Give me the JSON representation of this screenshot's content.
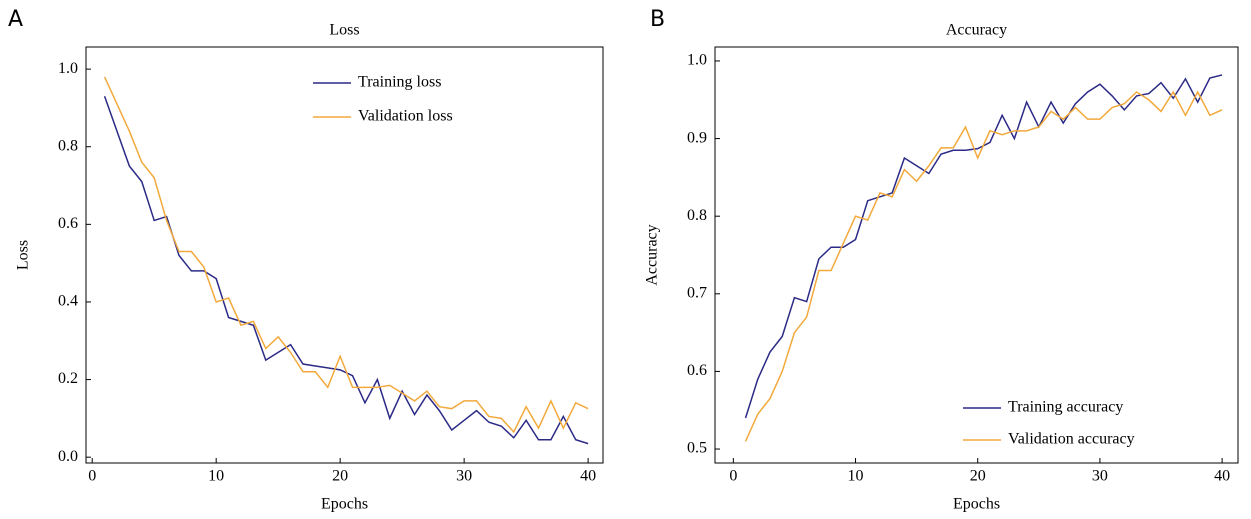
{
  "chart_data": [
    {
      "type": "line",
      "panel_label": "A",
      "title": "Loss",
      "x_label": "Epochs",
      "y_label": "Loss",
      "x": [
        1,
        2,
        3,
        4,
        5,
        6,
        7,
        8,
        9,
        10,
        11,
        12,
        13,
        14,
        15,
        16,
        17,
        18,
        19,
        20,
        21,
        22,
        23,
        24,
        25,
        26,
        27,
        28,
        29,
        30,
        31,
        32,
        33,
        34,
        35,
        36,
        37,
        38,
        39,
        40
      ],
      "series": [
        {
          "name": "Training loss",
          "color": "#2b2a86",
          "values": [
            0.93,
            0.84,
            0.75,
            0.71,
            0.61,
            0.62,
            0.52,
            0.48,
            0.48,
            0.46,
            0.36,
            0.35,
            0.34,
            0.25,
            0.27,
            0.29,
            0.24,
            0.235,
            0.23,
            0.225,
            0.21,
            0.14,
            0.2,
            0.1,
            0.17,
            0.11,
            0.16,
            0.12,
            0.07,
            0.095,
            0.12,
            0.09,
            0.08,
            0.05,
            0.095,
            0.045,
            0.045,
            0.105,
            0.045,
            0.035
          ]
        },
        {
          "name": "Validation loss",
          "color": "#f2a93b",
          "values": [
            0.98,
            0.91,
            0.84,
            0.76,
            0.72,
            0.61,
            0.53,
            0.53,
            0.49,
            0.4,
            0.41,
            0.34,
            0.35,
            0.28,
            0.31,
            0.27,
            0.22,
            0.22,
            0.18,
            0.26,
            0.18,
            0.18,
            0.18,
            0.185,
            0.165,
            0.145,
            0.17,
            0.13,
            0.125,
            0.145,
            0.145,
            0.105,
            0.1,
            0.065,
            0.13,
            0.075,
            0.145,
            0.075,
            0.14,
            0.125
          ]
        }
      ],
      "xlim": [
        -0.5,
        41.2
      ],
      "xticks": [
        0,
        10,
        20,
        30,
        40
      ],
      "ylim": [
        -0.015,
        1.057
      ],
      "yticks": [
        {
          "value": 0,
          "label": "0.0"
        },
        0.2,
        0.4,
        0.6,
        0.8,
        {
          "value": 1,
          "label": "1.0"
        }
      ],
      "legend": "upper right",
      "grid": false
    },
    {
      "type": "line",
      "panel_label": "B",
      "title": "Accuracy",
      "x_label": "Epochs",
      "y_label": "Accuracy",
      "x": [
        1,
        2,
        3,
        4,
        5,
        6,
        7,
        8,
        9,
        10,
        11,
        12,
        13,
        14,
        15,
        16,
        17,
        18,
        19,
        20,
        21,
        22,
        23,
        24,
        25,
        26,
        27,
        28,
        29,
        30,
        31,
        32,
        33,
        34,
        35,
        36,
        37,
        38,
        39,
        40
      ],
      "series": [
        {
          "name": "Training accuracy",
          "color": "#2b2a86",
          "values": [
            0.54,
            0.59,
            0.625,
            0.645,
            0.695,
            0.69,
            0.745,
            0.76,
            0.76,
            0.77,
            0.82,
            0.825,
            0.83,
            0.875,
            0.865,
            0.855,
            0.88,
            0.885,
            0.885,
            0.887,
            0.895,
            0.93,
            0.9,
            0.947,
            0.915,
            0.947,
            0.92,
            0.945,
            0.96,
            0.97,
            0.955,
            0.937,
            0.955,
            0.958,
            0.972,
            0.952,
            0.977,
            0.947,
            0.978,
            0.982
          ]
        },
        {
          "name": "Validation accuracy",
          "color": "#f2a93b",
          "values": [
            0.51,
            0.545,
            0.565,
            0.6,
            0.65,
            0.67,
            0.73,
            0.73,
            0.765,
            0.8,
            0.795,
            0.83,
            0.825,
            0.86,
            0.845,
            0.865,
            0.888,
            0.888,
            0.915,
            0.875,
            0.91,
            0.905,
            0.91,
            0.91,
            0.915,
            0.935,
            0.925,
            0.94,
            0.925,
            0.925,
            0.94,
            0.945,
            0.96,
            0.95,
            0.935,
            0.96,
            0.93,
            0.96,
            0.93,
            0.937
          ]
        }
      ],
      "xlim": [
        -1.5,
        41.3
      ],
      "xticks": [
        0,
        10,
        20,
        30,
        40
      ],
      "ylim": [
        0.482,
        1.018
      ],
      "yticks": [
        0.5,
        0.6,
        0.7,
        0.8,
        0.9,
        {
          "value": 1,
          "label": "1.0"
        }
      ],
      "legend": "lower right",
      "grid": false
    }
  ]
}
